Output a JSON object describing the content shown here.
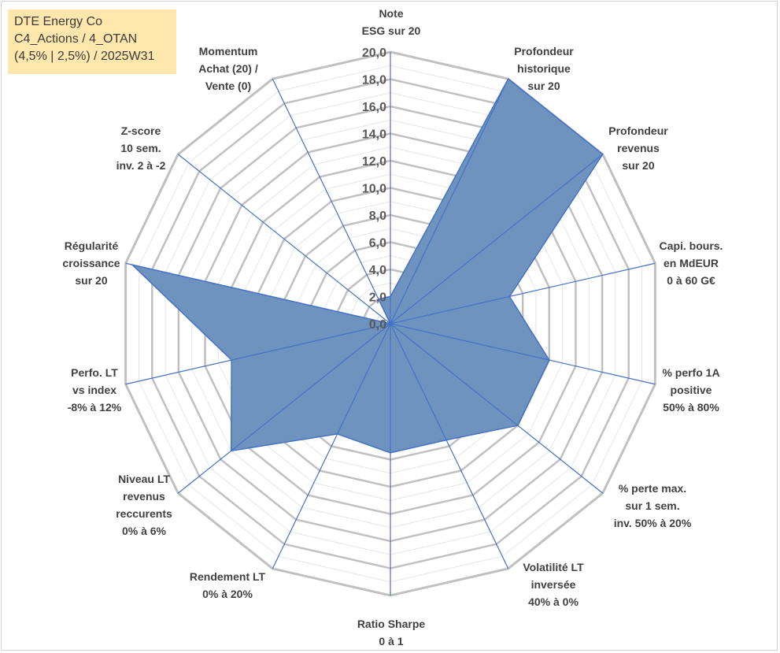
{
  "info": {
    "lines": [
      "DTE Energy Co",
      "C4_Actions / 4_OTAN",
      "(4,5% | 2,5%) / 2025W31"
    ]
  },
  "colors": {
    "fill": "#6f93bf",
    "line": "#4472c4",
    "grid_major": "#c0c0c0",
    "grid_minor": "#e6e6e6",
    "info_bg": "#ffe6ad"
  },
  "chart_data": {
    "type": "radar",
    "title": "",
    "rmax": 20,
    "ticks": [
      "0,0",
      "2,0",
      "4,0",
      "6,0",
      "8,0",
      "10,0",
      "12,0",
      "14,0",
      "16,0",
      "18,0",
      "20,0"
    ],
    "categories": [
      [
        "Note",
        "ESG sur 20"
      ],
      [
        "Profondeur",
        "historique",
        "sur 20"
      ],
      [
        "Profondeur",
        "revenus",
        "sur 20"
      ],
      [
        "Capi. bours.",
        "en MdEUR",
        "0 à 60 G€"
      ],
      [
        "% perfo 1A",
        "positive",
        "50% à 80%"
      ],
      [
        "% perte max.",
        "sur 1 sem.",
        "inv. 50% à 20%"
      ],
      [
        "Volatilité LT",
        "inversée",
        "40% à 0%"
      ],
      [
        "Ratio Sharpe",
        "0 à 1"
      ],
      [
        "Rendement LT",
        "0% à 20%"
      ],
      [
        "Niveau LT",
        "revenus",
        "reccurents",
        "0% à 6%"
      ],
      [
        "Perfo. LT",
        "vs index",
        "-8% à 12%"
      ],
      [
        "Régularité",
        "croissance",
        "sur 20"
      ],
      [
        "Z-score",
        "10 sem.",
        "inv. 2 à -2"
      ],
      [
        "Momentum",
        "Achat (20) /",
        "Vente (0)"
      ]
    ],
    "series": [
      {
        "values": [
          2,
          20,
          20,
          9,
          12,
          12,
          9.5,
          9.5,
          9,
          15,
          12,
          19.5,
          0,
          2
        ]
      }
    ]
  }
}
